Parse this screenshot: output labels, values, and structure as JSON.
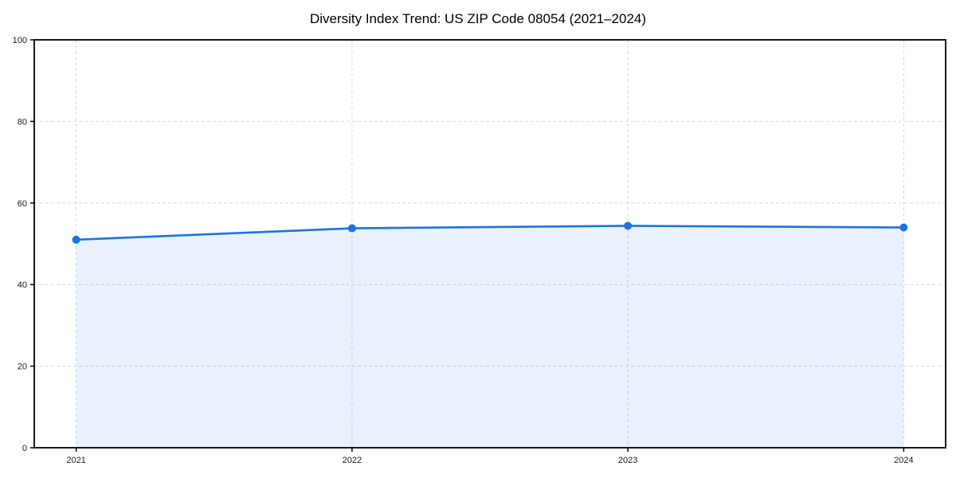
{
  "chart_data": {
    "type": "area",
    "title": "Diversity Index Trend: US ZIP Code 08054 (2021–2024)",
    "categories": [
      "2021",
      "2022",
      "2023",
      "2024"
    ],
    "x": [
      2021,
      2022,
      2023,
      2024
    ],
    "series": [
      {
        "name": "Diversity Index",
        "values": [
          51.0,
          53.8,
          54.4,
          54.0
        ]
      }
    ],
    "xlabel": "",
    "ylabel": "",
    "ylim": [
      0,
      100
    ],
    "yticks": [
      0,
      20,
      40,
      60,
      80,
      100
    ],
    "grid": true,
    "grid_style": "dashed",
    "legend_position": "none",
    "colors": {
      "line": "#1a73e8",
      "marker": "#1a73e8",
      "fill": "rgba(26,115,232,0.10)",
      "grid": "#d9d9d9",
      "spine": "#000000",
      "tick_text": "#1a1a1a",
      "title_text": "#000000",
      "background": "#ffffff"
    }
  }
}
